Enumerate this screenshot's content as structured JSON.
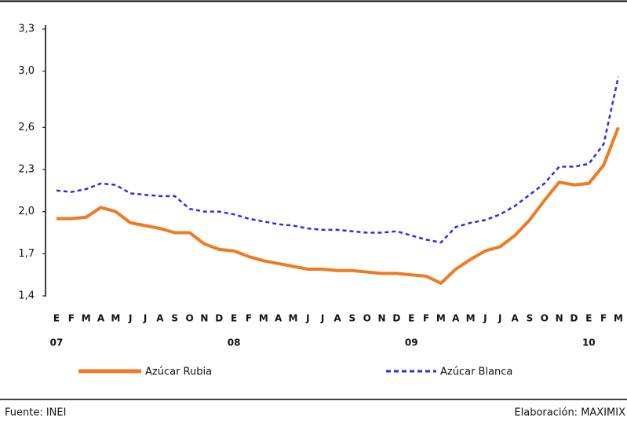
{
  "chart_data": {
    "type": "line",
    "categories": [
      "E",
      "F",
      "M",
      "A",
      "M",
      "J",
      "J",
      "A",
      "S",
      "O",
      "N",
      "D",
      "E",
      "F",
      "M",
      "A",
      "M",
      "J",
      "J",
      "A",
      "S",
      "O",
      "N",
      "D",
      "E",
      "F",
      "M",
      "A",
      "M",
      "J",
      "J",
      "A",
      "S",
      "O",
      "N",
      "D",
      "E",
      "F",
      "M"
    ],
    "years": [
      "07",
      null,
      null,
      null,
      null,
      null,
      null,
      null,
      null,
      null,
      null,
      null,
      "08",
      null,
      null,
      null,
      null,
      null,
      null,
      null,
      null,
      null,
      null,
      null,
      "09",
      null,
      null,
      null,
      null,
      null,
      null,
      null,
      null,
      null,
      null,
      null,
      "10",
      null,
      null
    ],
    "series": [
      {
        "name": "Azúcar Rubia",
        "color": "#f07a22",
        "values": [
          1.95,
          1.95,
          1.96,
          2.03,
          2.0,
          1.92,
          1.9,
          1.88,
          1.85,
          1.85,
          1.77,
          1.73,
          1.72,
          1.68,
          1.65,
          1.63,
          1.61,
          1.59,
          1.59,
          1.58,
          1.58,
          1.57,
          1.56,
          1.56,
          1.55,
          1.54,
          1.49,
          1.59,
          1.66,
          1.72,
          1.75,
          1.83,
          1.94,
          2.08,
          2.21,
          2.19,
          2.2,
          2.33,
          2.6
        ]
      },
      {
        "name": "Azúcar Blanca",
        "color": "#2b2be8",
        "values": [
          2.15,
          2.14,
          2.16,
          2.2,
          2.19,
          2.13,
          2.12,
          2.11,
          2.11,
          2.02,
          2.0,
          2.0,
          1.98,
          1.95,
          1.93,
          1.91,
          1.9,
          1.88,
          1.87,
          1.87,
          1.86,
          1.85,
          1.85,
          1.86,
          1.83,
          1.8,
          1.78,
          1.89,
          1.92,
          1.94,
          1.98,
          2.04,
          2.12,
          2.2,
          2.32,
          2.32,
          2.34,
          2.48,
          2.96
        ]
      }
    ],
    "ylim": [
      1.4,
      3.3
    ],
    "yticks": [
      {
        "value": 1.4,
        "label": "1,4"
      },
      {
        "value": 1.7,
        "label": "1,7"
      },
      {
        "value": 2.0,
        "label": "2,0"
      },
      {
        "value": 2.3,
        "label": "2,3"
      },
      {
        "value": 2.6,
        "label": "2,6"
      },
      {
        "value": 3.0,
        "label": "3,0"
      },
      {
        "value": 3.3,
        "label": "3,3"
      }
    ],
    "source": "Fuente: INEI",
    "credit": "Elaboración: MAXIMIX"
  }
}
